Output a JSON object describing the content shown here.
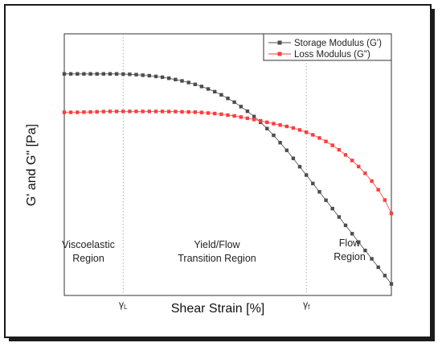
{
  "chart_data": {
    "type": "line",
    "title": "",
    "xlabel": "Shear Strain [%]",
    "ylabel": "G' and G\" [Pa]",
    "x_scale": "log",
    "y_scale": "log",
    "axis_ticks_numeric": false,
    "grid": false,
    "legend": {
      "placement": "top-right",
      "entries": [
        "Storage Modulus (G')",
        "Loss Modulus (G\")"
      ]
    },
    "x_markers": [
      {
        "label": "γL",
        "x": 18
      },
      {
        "label": "γf",
        "x": 74
      }
    ],
    "region_labels": [
      {
        "text": [
          "Viscoelastic",
          "Region"
        ]
      },
      {
        "text": [
          "Yield/Flow",
          "Transition Region"
        ]
      },
      {
        "text": [
          "Flow",
          "Region"
        ]
      }
    ],
    "series": [
      {
        "name": "Storage Modulus (G')",
        "color": "#4d4d4d",
        "marker": "square",
        "x": [
          0,
          2,
          4,
          6,
          8,
          10,
          12,
          14,
          16,
          18,
          20,
          22,
          24,
          26,
          28,
          30,
          32,
          34,
          36,
          38,
          40,
          42,
          44,
          46,
          48,
          50,
          52,
          54,
          56,
          58,
          60,
          62,
          64,
          66,
          68,
          70,
          72,
          74,
          76,
          78,
          80,
          82,
          84,
          86,
          88,
          90,
          92,
          94,
          96,
          98,
          100
        ],
        "y": [
          97,
          97,
          97,
          97,
          97,
          97,
          97,
          97,
          97,
          96.9,
          96.8,
          96.6,
          96.3,
          96,
          95.6,
          95.1,
          94.5,
          93.8,
          93,
          92.1,
          91,
          89.8,
          88.4,
          86.8,
          85,
          83,
          80.8,
          78.3,
          75.6,
          72.6,
          69.3,
          65.7,
          61.8,
          57.6,
          53.2,
          48.6,
          43.8,
          39,
          34.2,
          29.4,
          24.6,
          19.8,
          15,
          10.2,
          5.4,
          0.6,
          -4.2,
          -9,
          -13.8,
          -18.6,
          -23.4
        ]
      },
      {
        "name": "Loss Modulus (G\")",
        "color": "#ff3b3b",
        "marker": "square",
        "x": [
          0,
          2,
          4,
          6,
          8,
          10,
          12,
          14,
          16,
          18,
          20,
          22,
          24,
          26,
          28,
          30,
          32,
          34,
          36,
          38,
          40,
          42,
          44,
          46,
          48,
          50,
          52,
          54,
          56,
          58,
          60,
          62,
          64,
          66,
          68,
          70,
          72,
          74,
          76,
          78,
          80,
          82,
          84,
          86,
          88,
          90,
          92,
          94,
          96,
          98,
          100
        ],
        "y": [
          75,
          75,
          75,
          75.1,
          75.2,
          75.3,
          75.4,
          75.5,
          75.5,
          75.5,
          75.5,
          75.5,
          75.5,
          75.5,
          75.5,
          75.5,
          75.4,
          75.4,
          75.3,
          75.2,
          75.1,
          74.9,
          74.6,
          74.3,
          73.9,
          73.4,
          72.9,
          72.3,
          71.6,
          70.9,
          70.1,
          69.3,
          68.5,
          67.7,
          66.9,
          66,
          64.9,
          63.6,
          62.1,
          60.3,
          58.3,
          56.1,
          53.5,
          50.6,
          47.4,
          43.9,
          40,
          35.6,
          30.6,
          24.7,
          17
        ]
      }
    ],
    "xlim": [
      0,
      100
    ],
    "ylim": [
      -30,
      120
    ]
  }
}
